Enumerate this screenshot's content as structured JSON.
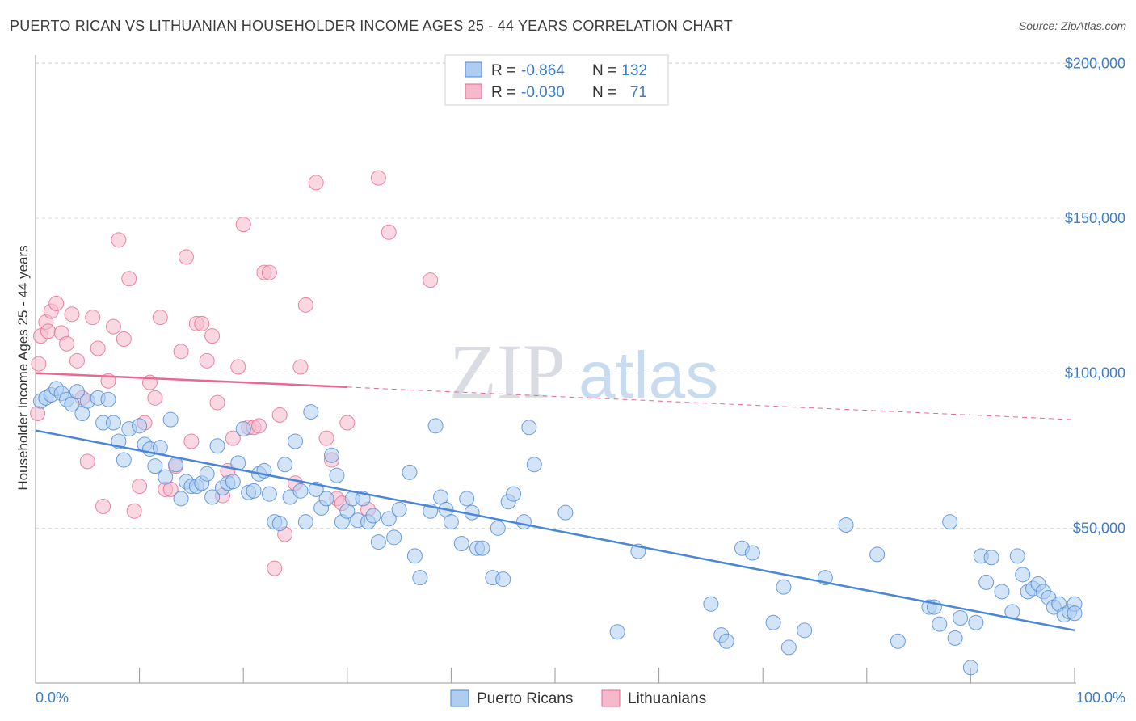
{
  "title": "PUERTO RICAN VS LITHUANIAN HOUSEHOLDER INCOME AGES 25 - 44 YEARS CORRELATION CHART",
  "source": "Source: ZipAtlas.com",
  "watermark": {
    "zip": "ZIP",
    "atlas": "atlas"
  },
  "colors": {
    "blue": "#4a86d8",
    "blue_fill": "#aecdf0",
    "pink": "#e8688f",
    "pink_fill": "#f6b8cb",
    "tick_text": "#3d7cc9"
  },
  "legend_top": [
    {
      "r_label": "R =",
      "r_value": "-0.864",
      "n_label": "N =",
      "n_value": "132"
    },
    {
      "r_label": "R =",
      "r_value": "-0.030",
      "n_label": "N =",
      "n_value": "71"
    }
  ],
  "legend_bottom": [
    "Puerto Ricans",
    "Lithuanians"
  ],
  "chart_data": {
    "type": "scatter",
    "ylabel": "Householder Income Ages 25 - 44 years",
    "xlim": [
      0,
      100
    ],
    "ylim": [
      0,
      210000
    ],
    "x_tick_labels": [
      "0.0%",
      "100.0%"
    ],
    "y_ticks": [
      50000,
      100000,
      150000,
      200000
    ],
    "y_tick_labels": [
      "$50,000",
      "$100,000",
      "$150,000",
      "$200,000"
    ],
    "grid": true,
    "series": [
      {
        "name": "Puerto Ricans",
        "trend": {
          "x": [
            0,
            100
          ],
          "y": [
            81500,
            17000
          ],
          "dashed_from": null
        },
        "points": [
          [
            0.5,
            91000
          ],
          [
            1,
            92000
          ],
          [
            1.5,
            93000
          ],
          [
            2,
            95000
          ],
          [
            2.5,
            93500
          ],
          [
            3,
            91500
          ],
          [
            3.5,
            90000
          ],
          [
            4,
            94000
          ],
          [
            4.5,
            87000
          ],
          [
            5,
            91000
          ],
          [
            6,
            92000
          ],
          [
            6.5,
            84000
          ],
          [
            7,
            91500
          ],
          [
            7.5,
            84000
          ],
          [
            8,
            78000
          ],
          [
            8.5,
            72000
          ],
          [
            9,
            82000
          ],
          [
            10,
            83000
          ],
          [
            10.5,
            77000
          ],
          [
            11,
            75500
          ],
          [
            11.5,
            70000
          ],
          [
            12,
            76000
          ],
          [
            12.5,
            66500
          ],
          [
            13,
            85000
          ],
          [
            13.5,
            70500
          ],
          [
            14,
            59500
          ],
          [
            14.5,
            65000
          ],
          [
            15,
            63500
          ],
          [
            15.5,
            63500
          ],
          [
            16,
            64500
          ],
          [
            16.5,
            67500
          ],
          [
            17,
            60000
          ],
          [
            17.5,
            76500
          ],
          [
            18,
            63000
          ],
          [
            18.5,
            64500
          ],
          [
            19,
            65000
          ],
          [
            19.5,
            71000
          ],
          [
            20,
            82000
          ],
          [
            20.5,
            61500
          ],
          [
            21,
            62000
          ],
          [
            21.5,
            67500
          ],
          [
            22,
            68500
          ],
          [
            22.5,
            61000
          ],
          [
            23,
            52000
          ],
          [
            23.5,
            51500
          ],
          [
            24,
            70500
          ],
          [
            24.5,
            60000
          ],
          [
            25,
            78000
          ],
          [
            25.5,
            62000
          ],
          [
            26,
            52000
          ],
          [
            26.5,
            87500
          ],
          [
            27,
            62500
          ],
          [
            27.5,
            56500
          ],
          [
            28,
            59500
          ],
          [
            28.5,
            73500
          ],
          [
            29,
            67000
          ],
          [
            29.5,
            52000
          ],
          [
            30,
            55500
          ],
          [
            30.5,
            59500
          ],
          [
            31,
            52500
          ],
          [
            31.5,
            59500
          ],
          [
            32,
            52000
          ],
          [
            32.5,
            54000
          ],
          [
            33,
            45500
          ],
          [
            34,
            53000
          ],
          [
            34.5,
            47000
          ],
          [
            35,
            56000
          ],
          [
            36,
            68000
          ],
          [
            36.5,
            41000
          ],
          [
            37,
            34000
          ],
          [
            38,
            55500
          ],
          [
            38.5,
            83000
          ],
          [
            39,
            60000
          ],
          [
            39.5,
            56000
          ],
          [
            40,
            52000
          ],
          [
            41,
            45000
          ],
          [
            41.5,
            59500
          ],
          [
            42,
            55000
          ],
          [
            42.5,
            43500
          ],
          [
            43,
            43500
          ],
          [
            44,
            34000
          ],
          [
            44.5,
            50000
          ],
          [
            45,
            33500
          ],
          [
            45.5,
            58500
          ],
          [
            46,
            61000
          ],
          [
            47,
            52000
          ],
          [
            47.5,
            82500
          ],
          [
            48,
            70500
          ],
          [
            51,
            55000
          ],
          [
            56,
            16500
          ],
          [
            58,
            42500
          ],
          [
            65,
            25500
          ],
          [
            66,
            15500
          ],
          [
            66.5,
            13500
          ],
          [
            68,
            43500
          ],
          [
            69,
            42000
          ],
          [
            71,
            19500
          ],
          [
            72,
            31000
          ],
          [
            72.5,
            11500
          ],
          [
            74,
            17000
          ],
          [
            76,
            34000
          ],
          [
            78,
            51000
          ],
          [
            81,
            41500
          ],
          [
            83,
            13500
          ],
          [
            86,
            24500
          ],
          [
            86.5,
            24500
          ],
          [
            87,
            19000
          ],
          [
            88,
            52000
          ],
          [
            88.5,
            14500
          ],
          [
            89,
            21000
          ],
          [
            90,
            5000
          ],
          [
            90.5,
            19500
          ],
          [
            91,
            41000
          ],
          [
            91.5,
            32500
          ],
          [
            92,
            40500
          ],
          [
            93,
            29500
          ],
          [
            94,
            23000
          ],
          [
            94.5,
            41000
          ],
          [
            95,
            35000
          ],
          [
            95.5,
            29500
          ],
          [
            96,
            30500
          ],
          [
            96.5,
            32000
          ],
          [
            97,
            29500
          ],
          [
            97.5,
            27500
          ],
          [
            98,
            24500
          ],
          [
            98.5,
            25500
          ],
          [
            99,
            22000
          ],
          [
            99.5,
            23000
          ],
          [
            100,
            25500
          ],
          [
            100,
            22500
          ]
        ]
      },
      {
        "name": "Lithuanians",
        "trend": {
          "x": [
            0,
            100
          ],
          "y": [
            100000,
            85000
          ],
          "dashed_from": 30
        },
        "points": [
          [
            0.2,
            87000
          ],
          [
            0.3,
            103000
          ],
          [
            0.5,
            112000
          ],
          [
            1,
            116500
          ],
          [
            1.2,
            113500
          ],
          [
            1.5,
            120000
          ],
          [
            2,
            122500
          ],
          [
            2.5,
            113000
          ],
          [
            3,
            109500
          ],
          [
            3.5,
            119000
          ],
          [
            4,
            104000
          ],
          [
            4.5,
            92000
          ],
          [
            5,
            71500
          ],
          [
            5.5,
            118000
          ],
          [
            6,
            108000
          ],
          [
            6.5,
            57000
          ],
          [
            7,
            97500
          ],
          [
            7.5,
            115000
          ],
          [
            8,
            143000
          ],
          [
            8.5,
            111000
          ],
          [
            9,
            130500
          ],
          [
            9.5,
            55500
          ],
          [
            10,
            63500
          ],
          [
            10.5,
            84000
          ],
          [
            11,
            97000
          ],
          [
            11.5,
            92000
          ],
          [
            12,
            118000
          ],
          [
            12.5,
            62500
          ],
          [
            13,
            62500
          ],
          [
            13.5,
            70000
          ],
          [
            14,
            107000
          ],
          [
            14.5,
            137500
          ],
          [
            15,
            78000
          ],
          [
            15.5,
            116000
          ],
          [
            16,
            116000
          ],
          [
            16.5,
            104000
          ],
          [
            17,
            112000
          ],
          [
            17.5,
            90500
          ],
          [
            18,
            60500
          ],
          [
            18.5,
            68500
          ],
          [
            19,
            79000
          ],
          [
            19.5,
            102000
          ],
          [
            20,
            148000
          ],
          [
            20.5,
            82500
          ],
          [
            21,
            82500
          ],
          [
            21.5,
            83000
          ],
          [
            22,
            132500
          ],
          [
            22.5,
            132500
          ],
          [
            23,
            37000
          ],
          [
            23.5,
            86500
          ],
          [
            24,
            48000
          ],
          [
            25,
            64500
          ],
          [
            25.5,
            102000
          ],
          [
            26,
            122000
          ],
          [
            27,
            161500
          ],
          [
            28,
            79000
          ],
          [
            28.5,
            72000
          ],
          [
            29,
            59500
          ],
          [
            29.5,
            58000
          ],
          [
            30,
            84000
          ],
          [
            32,
            56000
          ],
          [
            33,
            163000
          ],
          [
            34,
            145500
          ],
          [
            38,
            130000
          ]
        ]
      }
    ]
  }
}
